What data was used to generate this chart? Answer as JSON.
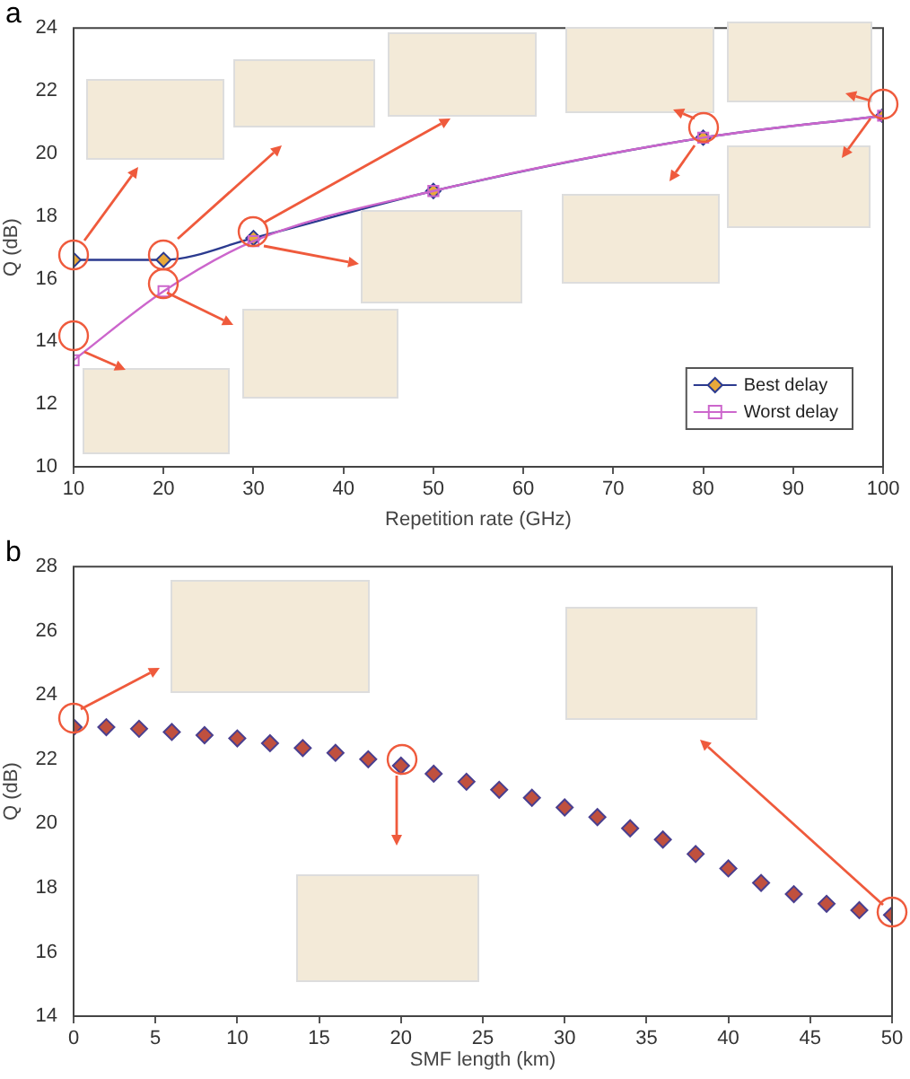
{
  "chart_data": [
    {
      "type": "line",
      "title": "a",
      "xlabel": "Repetition rate (GHz)",
      "ylabel": "Q (dB)",
      "x": [
        10,
        20,
        30,
        50,
        80,
        100
      ],
      "series": [
        {
          "name": "Best delay",
          "color": "#2b3a8f",
          "marker": "diamond",
          "values": [
            16.6,
            16.6,
            17.3,
            18.8,
            20.5,
            21.2
          ]
        },
        {
          "name": "Worst delay",
          "color": "#cc66cc",
          "marker": "square",
          "values": [
            13.4,
            15.6,
            17.2,
            18.8,
            20.5,
            21.2
          ]
        }
      ],
      "xlim": [
        10,
        100
      ],
      "xticks": [
        10,
        20,
        30,
        40,
        50,
        60,
        70,
        80,
        90,
        100
      ],
      "ylim": [
        10,
        24
      ],
      "yticks": [
        10,
        12,
        14,
        16,
        18,
        20,
        22,
        24
      ],
      "grid": false,
      "legend": "bottom right"
    },
    {
      "type": "scatter",
      "title": "b",
      "xlabel": "SMF length (km)",
      "ylabel": "Q (dB)",
      "x": [
        0,
        2,
        4,
        6,
        8,
        10,
        12,
        14,
        16,
        18,
        20,
        22,
        24,
        26,
        28,
        30,
        32,
        34,
        36,
        38,
        40,
        42,
        44,
        46,
        48,
        50
      ],
      "series": [
        {
          "color": "#c0503e",
          "marker": "diamond",
          "values": [
            23.0,
            23.0,
            22.95,
            22.85,
            22.75,
            22.65,
            22.5,
            22.35,
            22.2,
            22.0,
            21.8,
            21.55,
            21.3,
            21.05,
            20.8,
            20.5,
            20.2,
            19.85,
            19.5,
            19.05,
            18.6,
            18.15,
            17.8,
            17.5,
            17.3,
            17.15
          ]
        }
      ],
      "xlim": [
        0,
        50
      ],
      "xticks": [
        0,
        5,
        10,
        15,
        20,
        25,
        30,
        35,
        40,
        45,
        50
      ],
      "ylim": [
        14,
        28
      ],
      "yticks": [
        14,
        16,
        18,
        20,
        22,
        24,
        26,
        28
      ],
      "grid": false,
      "legend": false
    }
  ]
}
